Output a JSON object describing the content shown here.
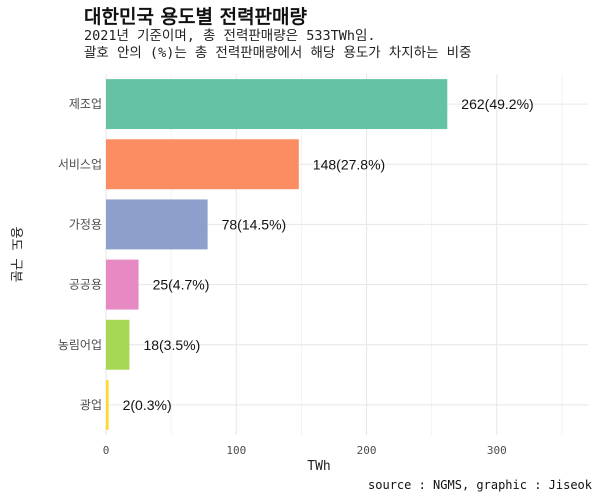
{
  "chart_data": {
    "type": "bar",
    "orientation": "horizontal",
    "title": "대한민국 용도별 전력판매량",
    "subtitle": "2021년 기준이며, 총 전력판매량은 533TWh임.\n괄호 안의 (%)는 총 전력판매량에서 해당 용도가 차지하는 비중",
    "caption": "source : NGMS, graphic : Jiseok",
    "xlabel": "TWh",
    "ylabel": "용도 구분",
    "categories": [
      "제조업",
      "서비스업",
      "가정용",
      "공공용",
      "농림어업",
      "광업"
    ],
    "values": [
      262,
      148,
      78,
      25,
      18,
      2
    ],
    "data_labels": [
      "262(49.2%)",
      "148(27.8%)",
      "78(14.5%)",
      "25(4.7%)",
      "18(3.5%)",
      "2(0.3%)"
    ],
    "colors": [
      "#66c2a5",
      "#fc8d62",
      "#8da0cb",
      "#e78ac3",
      "#a6d854",
      "#ffd92f"
    ],
    "xlim": [
      0,
      370
    ],
    "xticks": [
      0,
      100,
      200,
      300
    ],
    "grid": true,
    "legend": "none"
  }
}
